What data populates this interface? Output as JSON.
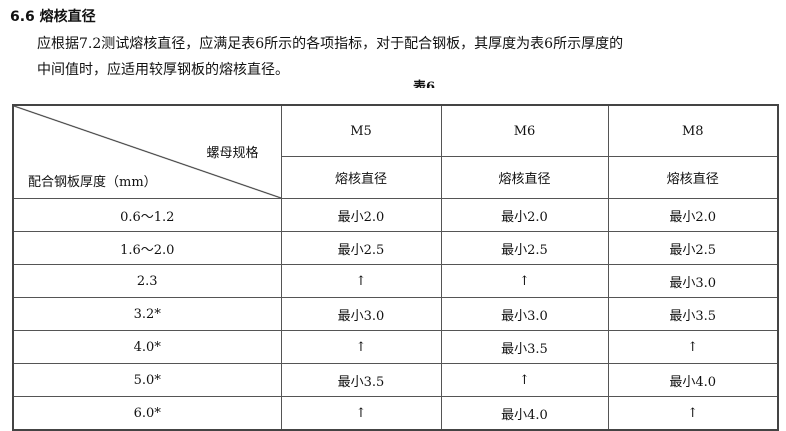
{
  "section": {
    "title": "6.6 熔核直径",
    "para_line1": "应根据7.2测试熔核直径，应满足表6所示的各项指标，对于配合钢板，其厚度为表6所示厚度的",
    "para_line2": "中间值时，应适用较厚钢板的熔核直径。"
  },
  "caption": "表6",
  "table": {
    "corner_top": "螺母规格",
    "corner_bottom": "配合钢板厚度（mm）",
    "columns": [
      "M5",
      "M6",
      "M8"
    ],
    "subheader": [
      "熔核直径",
      "熔核直径",
      "熔核直径"
    ],
    "rows": [
      {
        "thickness": "0.6～1.2",
        "values": [
          "最小2.0",
          "最小2.0",
          "最小2.0"
        ]
      },
      {
        "thickness": "1.6～2.0",
        "values": [
          "最小2.5",
          "最小2.5",
          "最小2.5"
        ]
      },
      {
        "thickness": "2.3",
        "values": [
          "↑",
          "↑",
          "最小3.0"
        ]
      },
      {
        "thickness": "3.2*",
        "values": [
          "最小3.0",
          "最小3.0",
          "最小3.5"
        ]
      },
      {
        "thickness": "4.0*",
        "values": [
          "↑",
          "最小3.5",
          "↑"
        ]
      },
      {
        "thickness": "5.0*",
        "values": [
          "最小3.5",
          "↑",
          "最小4.0"
        ]
      },
      {
        "thickness": "6.0*",
        "values": [
          "↑",
          "最小4.0",
          "↑"
        ]
      }
    ]
  }
}
